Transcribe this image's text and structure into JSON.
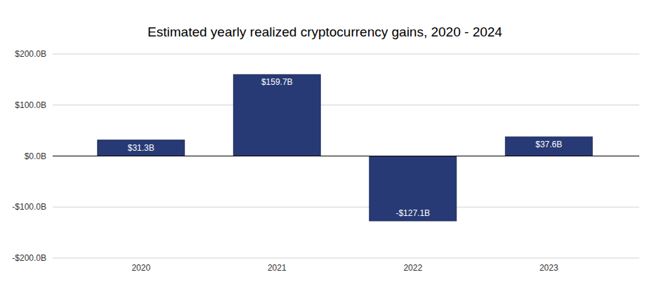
{
  "chart_data": {
    "type": "bar",
    "title": "Estimated yearly realized cryptocurrency gains, 2020 - 2024",
    "categories": [
      "2020",
      "2021",
      "2022",
      "2023"
    ],
    "values": [
      31.3,
      159.7,
      -127.1,
      37.6
    ],
    "value_labels": [
      "$31.3B",
      "$159.7B",
      "-$127.1B",
      "$37.6B"
    ],
    "color": "#283a75",
    "ylim": [
      -200,
      200
    ],
    "yticks": [
      {
        "value": -200,
        "label": "-$200.0B"
      },
      {
        "value": -100,
        "label": "-$100.0B"
      },
      {
        "value": 0,
        "label": "$0.0B"
      },
      {
        "value": 100,
        "label": "$100.0B"
      },
      {
        "value": 200,
        "label": "$200.0B"
      }
    ],
    "grid": true,
    "data_labels": true
  }
}
